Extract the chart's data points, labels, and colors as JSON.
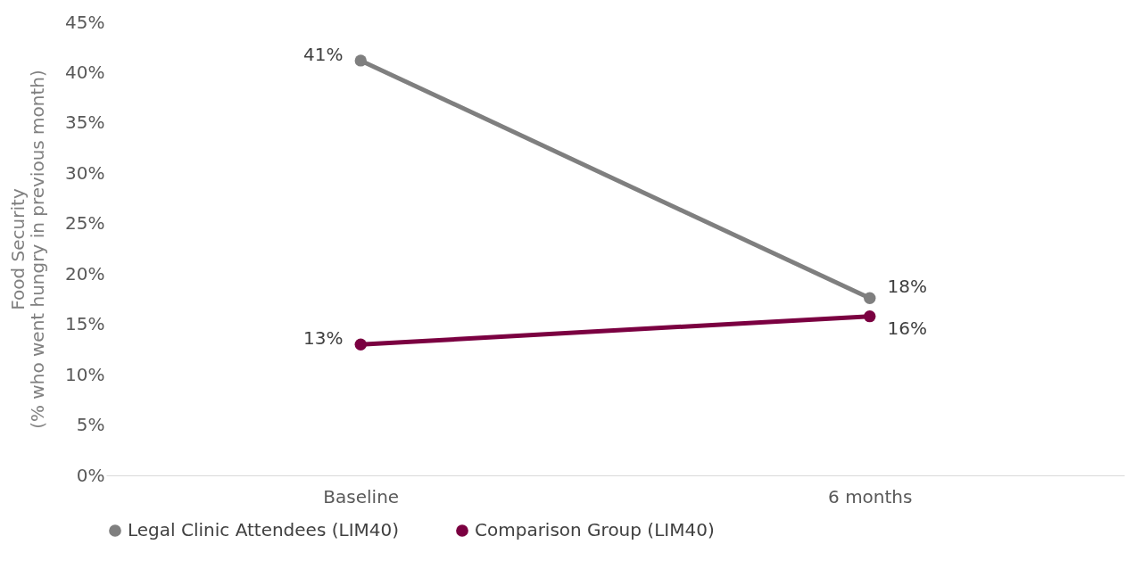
{
  "chart_data": {
    "type": "line",
    "ylabel": "Food Security\n(% who went hungry in previous month)",
    "categories": [
      "Baseline",
      "6 months"
    ],
    "series": [
      {
        "name": "Legal Clinic Attendees (LIM40)",
        "color": "#7f7f7f",
        "values": [
          41.2,
          17.6
        ],
        "value_labels": [
          "41%",
          "18%"
        ]
      },
      {
        "name": "Comparison Group (LIM40)",
        "color": "#7b0041",
        "values": [
          13.0,
          15.8
        ],
        "value_labels": [
          "13%",
          "16%"
        ]
      }
    ],
    "ylim": [
      0,
      45
    ],
    "yticks": [
      {
        "value": 0,
        "label": "0%"
      },
      {
        "value": 5,
        "label": "5%"
      },
      {
        "value": 10,
        "label": "10%"
      },
      {
        "value": 15,
        "label": "15%"
      },
      {
        "value": 20,
        "label": "20%"
      },
      {
        "value": 25,
        "label": "25%"
      },
      {
        "value": 30,
        "label": "30%"
      },
      {
        "value": 35,
        "label": "35%"
      },
      {
        "value": 40,
        "label": "40%"
      },
      {
        "value": 45,
        "label": "45%"
      }
    ],
    "grid": false,
    "legend": "bottom",
    "marker": "circle",
    "line_style": "solid"
  }
}
